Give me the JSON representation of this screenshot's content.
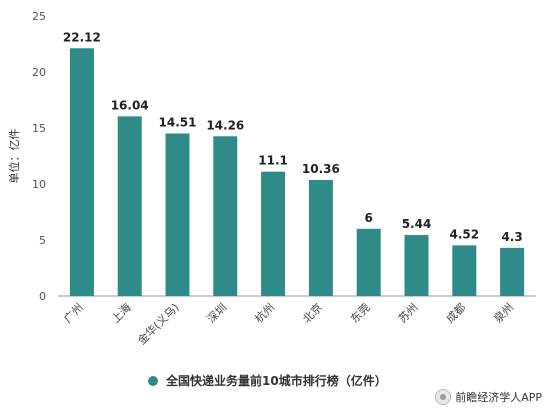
{
  "chart_data": {
    "type": "bar",
    "categories": [
      "广州",
      "上海",
      "金华(义乌)",
      "深圳",
      "杭州",
      "北京",
      "东莞",
      "苏州",
      "成都",
      "泉州"
    ],
    "values": [
      22.12,
      16.04,
      14.51,
      14.26,
      11.1,
      10.36,
      6,
      5.44,
      4.52,
      4.3
    ],
    "value_labels": [
      "22.12",
      "16.04",
      "14.51",
      "14.26",
      "11.1",
      "10.36",
      "6",
      "5.44",
      "4.52",
      "4.3"
    ],
    "ylabel": "单位：亿件",
    "ylim": [
      0,
      25
    ],
    "yticks": [
      "0",
      "5",
      "10",
      "15",
      "20",
      "25"
    ],
    "grid": false,
    "legend_position": "bottom",
    "series_name": "全国快递业务量前10城市排行榜（亿件）",
    "bar_color": "#2e8b87"
  },
  "source": "前瞻经济学人APP"
}
